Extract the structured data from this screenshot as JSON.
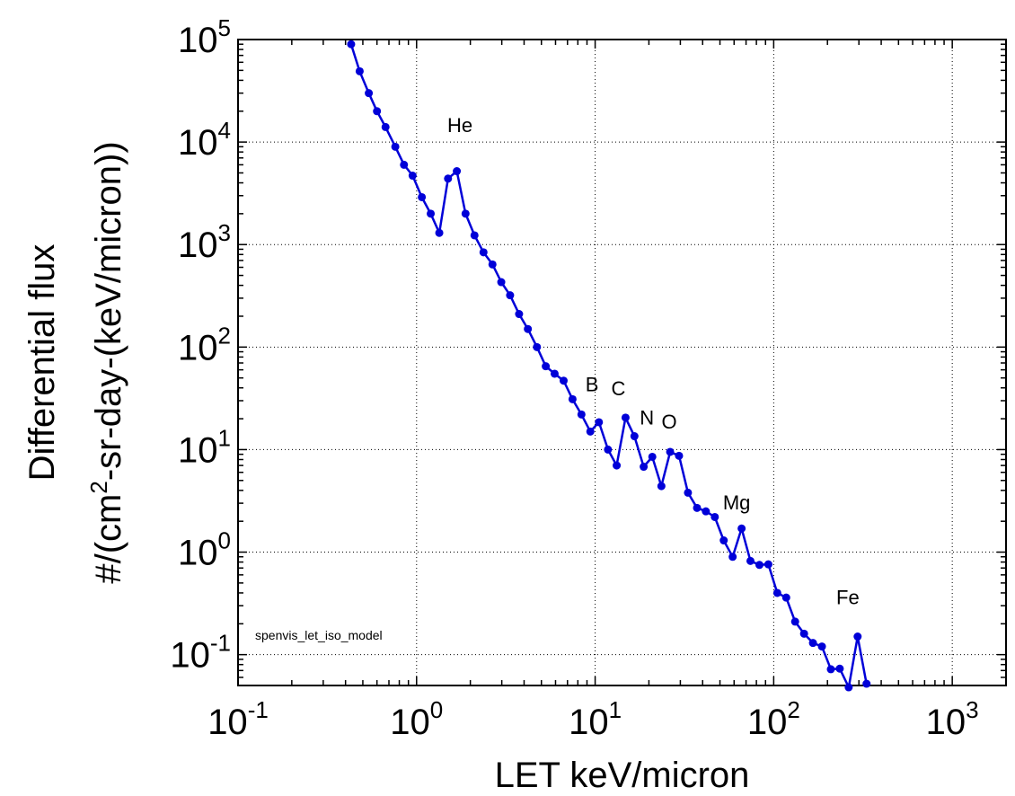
{
  "chart_data": {
    "type": "line",
    "xlabel": "LET keV/micron",
    "ylabel_line1": "Differential flux",
    "ylabel_line2": {
      "prefix": "#/(cm",
      "sup": "2",
      "suffix": "-sr-day-(keV/micron))"
    },
    "x_scale": "log",
    "y_scale": "log",
    "xlim": [
      0.1,
      2000
    ],
    "ylim": [
      0.05,
      100000
    ],
    "grid": true,
    "grid_style": "dotted",
    "x_ticks": [
      {
        "value": 0.1,
        "base": "10",
        "exp": "-1"
      },
      {
        "value": 1,
        "base": "10",
        "exp": "0"
      },
      {
        "value": 10,
        "base": "10",
        "exp": "1"
      },
      {
        "value": 100,
        "base": "10",
        "exp": "2"
      },
      {
        "value": 1000,
        "base": "10",
        "exp": "3"
      }
    ],
    "y_ticks": [
      {
        "value": 0.1,
        "base": "10",
        "exp": "-1"
      },
      {
        "value": 1,
        "base": "10",
        "exp": "0"
      },
      {
        "value": 10,
        "base": "10",
        "exp": "1"
      },
      {
        "value": 100,
        "base": "10",
        "exp": "2"
      },
      {
        "value": 1000,
        "base": "10",
        "exp": "3"
      },
      {
        "value": 10000,
        "base": "10",
        "exp": "4"
      },
      {
        "value": 100000,
        "base": "10",
        "exp": "5"
      }
    ],
    "series": [
      {
        "color": "#0000d8",
        "marker": "circle",
        "x": [
          0.43,
          0.48,
          0.54,
          0.6,
          0.67,
          0.76,
          0.85,
          0.95,
          1.07,
          1.2,
          1.34,
          1.5,
          1.68,
          1.88,
          2.11,
          2.37,
          2.66,
          2.98,
          3.34,
          3.75,
          4.2,
          4.72,
          5.29,
          5.93,
          6.66,
          7.47,
          8.38,
          9.4,
          10.5,
          11.8,
          13.2,
          14.8,
          16.6,
          18.7,
          20.9,
          23.5,
          26.3,
          29.5,
          33.1,
          37.2,
          41.7,
          46.8,
          52.5,
          58.9,
          66.1,
          74.1,
          83.2,
          93.3,
          104.7,
          117.5,
          131.8,
          147.9,
          165.9,
          186.2,
          208.9,
          234.4,
          263,
          295.1,
          331.1
        ],
        "values": [
          90000,
          49000,
          30000,
          20000,
          14000,
          9000,
          6000,
          4700,
          2900,
          2000,
          1300,
          4400,
          5200,
          2000,
          1230,
          840,
          640,
          430,
          320,
          210,
          150,
          100,
          65,
          55,
          47,
          31,
          22,
          15,
          18.5,
          10,
          7,
          20.5,
          13.5,
          6.8,
          8.5,
          4.4,
          9.5,
          8.7,
          3.8,
          2.7,
          2.5,
          2.2,
          1.3,
          0.9,
          1.7,
          0.82,
          0.75,
          0.76,
          0.4,
          0.36,
          0.21,
          0.16,
          0.13,
          0.12,
          0.072,
          0.073,
          0.048,
          0.15,
          0.052
        ]
      }
    ],
    "annotations": [
      {
        "text": "He",
        "x": 1.75,
        "y": 12500
      },
      {
        "text": "B",
        "x": 9.6,
        "y": 37
      },
      {
        "text": "C",
        "x": 13.5,
        "y": 34
      },
      {
        "text": "N",
        "x": 19.5,
        "y": 17.5
      },
      {
        "text": "O",
        "x": 26,
        "y": 16
      },
      {
        "text": "Mg",
        "x": 62,
        "y": 2.6
      },
      {
        "text": "Fe",
        "x": 260,
        "y": 0.31
      }
    ],
    "watermark": "spenvis_let_iso_model"
  }
}
